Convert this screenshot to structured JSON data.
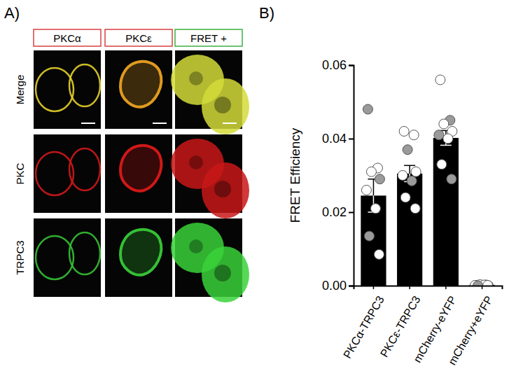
{
  "panel_labels": [
    "A)",
    "B)"
  ],
  "image_panel": {
    "columns": [
      "PKCα",
      "PKCε",
      "FRET +"
    ],
    "rows": [
      "Merge",
      "PKC",
      "TRPC3"
    ]
  },
  "chart_data": {
    "type": "bar",
    "y_label": "FRET Efficiency",
    "categories": [
      "PKCα-TRPC3",
      "PKCε-TRPC3",
      "mCherry-eYFP",
      "mCherry+eYFP"
    ],
    "values": [
      0.0245,
      0.0305,
      0.0402,
      0.0002
    ],
    "errors": [
      0.0045,
      0.0022,
      0.002,
      0.0001
    ],
    "points": [
      [
        0.048,
        0.032,
        0.031,
        0.029,
        0.026,
        0.021,
        0.0135,
        0.0085
      ],
      [
        0.042,
        0.041,
        0.037,
        0.031,
        0.03,
        0.0285,
        0.024,
        0.021
      ],
      [
        0.056,
        0.045,
        0.044,
        0.042,
        0.041,
        0.04,
        0.033,
        0.029
      ],
      [
        0.0001,
        0.0002,
        0.0003,
        0.0,
        0.0001,
        0.0002,
        0.0,
        0.0001
      ]
    ],
    "color": "#000000",
    "ylim": [
      0,
      0.06
    ],
    "yticks": [
      {
        "value": 0,
        "label": "0.00"
      },
      {
        "value": 0.02,
        "label": "0.02"
      },
      {
        "value": 0.04,
        "label": "0.04"
      },
      {
        "value": 0.06,
        "label": "0.06"
      }
    ]
  }
}
